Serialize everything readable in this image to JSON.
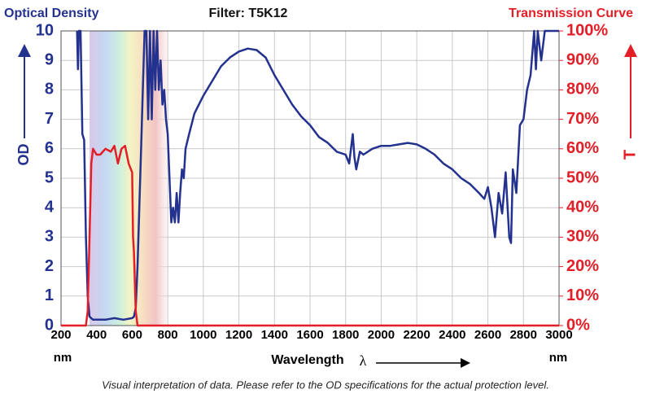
{
  "chart_data": {
    "type": "line",
    "title": "Filter: T5K12",
    "xlabel": "Wavelength",
    "xlabel_symbol": "λ",
    "x_unit": "nm",
    "ylabel": "OD",
    "y2label": "T",
    "caption": "Visual interpretation of data. Please refer to the OD specifications for the actual protection level.",
    "xlim": [
      200,
      3000
    ],
    "xticks": [
      200,
      400,
      600,
      800,
      1000,
      1200,
      1400,
      1600,
      1800,
      2000,
      2200,
      2400,
      2600,
      2800,
      3000
    ],
    "ylim": [
      0,
      10
    ],
    "yticks": [
      0,
      1,
      2,
      3,
      4,
      5,
      6,
      7,
      8,
      9,
      10
    ],
    "y2lim": [
      0,
      100
    ],
    "y2ticks": [
      {
        "value": 0,
        "label": "0%"
      },
      {
        "value": 10,
        "label": "10%"
      },
      {
        "value": 20,
        "label": "20%"
      },
      {
        "value": 30,
        "label": "30%"
      },
      {
        "value": 40,
        "label": "40%"
      },
      {
        "value": 50,
        "label": "50%"
      },
      {
        "value": 60,
        "label": "60%"
      },
      {
        "value": 70,
        "label": "70%"
      },
      {
        "value": 80,
        "label": "80%"
      },
      {
        "value": 90,
        "label": "90%"
      },
      {
        "value": 100,
        "label": "100%"
      }
    ],
    "grid": true,
    "series": [
      {
        "name": "Optical Density",
        "color": "#23318f",
        "x": [
          290,
          295,
          300,
          310,
          320,
          330,
          340,
          350,
          360,
          380,
          400,
          450,
          500,
          550,
          600,
          610,
          620,
          630,
          640,
          650,
          660,
          670,
          680,
          690,
          700,
          710,
          720,
          730,
          740,
          750,
          760,
          770,
          780,
          790,
          800,
          810,
          820,
          830,
          840,
          850,
          860,
          870,
          880,
          890,
          900,
          920,
          950,
          1000,
          1050,
          1100,
          1150,
          1200,
          1250,
          1300,
          1350,
          1400,
          1450,
          1500,
          1550,
          1600,
          1650,
          1700,
          1750,
          1800,
          1820,
          1840,
          1850,
          1860,
          1880,
          1900,
          1950,
          2000,
          2050,
          2100,
          2150,
          2200,
          2250,
          2300,
          2350,
          2400,
          2450,
          2500,
          2550,
          2580,
          2600,
          2620,
          2640,
          2660,
          2680,
          2700,
          2720,
          2730,
          2740,
          2760,
          2780,
          2800,
          2820,
          2840,
          2860,
          2870,
          2880,
          2900,
          2920,
          2950,
          2980,
          3000
        ],
        "values": [
          10,
          8.7,
          10,
          10,
          6.5,
          6.3,
          3,
          1,
          0.3,
          0.2,
          0.2,
          0.2,
          0.25,
          0.2,
          0.25,
          0.3,
          0.6,
          2,
          4,
          6,
          8,
          10,
          10,
          7,
          10,
          7,
          10,
          8,
          10,
          8,
          9,
          7.5,
          8,
          7,
          6.5,
          5,
          3.5,
          4,
          3.5,
          4.5,
          3.5,
          4.5,
          5.3,
          5,
          6,
          6.5,
          7.2,
          7.8,
          8.3,
          8.8,
          9.1,
          9.3,
          9.4,
          9.35,
          9.1,
          8.5,
          8,
          7.5,
          7.1,
          6.8,
          6.4,
          6.2,
          5.9,
          5.8,
          5.5,
          6.5,
          5.7,
          5.3,
          5.9,
          5.8,
          6,
          6.1,
          6.1,
          6.15,
          6.2,
          6.15,
          6,
          5.8,
          5.5,
          5.3,
          5,
          4.8,
          4.5,
          4.3,
          4.7,
          4,
          3,
          4.5,
          3.8,
          5.2,
          3,
          2.8,
          5.3,
          4.5,
          6.8,
          7,
          8,
          8.5,
          10,
          8.7,
          10,
          9,
          10,
          10,
          10,
          10
        ]
      },
      {
        "name": "Transmission Curve",
        "color": "#e41e26",
        "axis": "y2",
        "x": [
          200,
          340,
          350,
          360,
          370,
          380,
          400,
          420,
          450,
          480,
          500,
          520,
          540,
          560,
          580,
          600,
          605,
          610,
          620,
          630,
          700,
          3000
        ],
        "values": [
          0,
          0,
          5,
          30,
          55,
          60,
          58,
          58,
          60,
          59,
          61,
          55,
          60,
          61,
          55,
          52,
          30,
          25,
          5,
          0,
          0,
          0
        ]
      }
    ]
  }
}
